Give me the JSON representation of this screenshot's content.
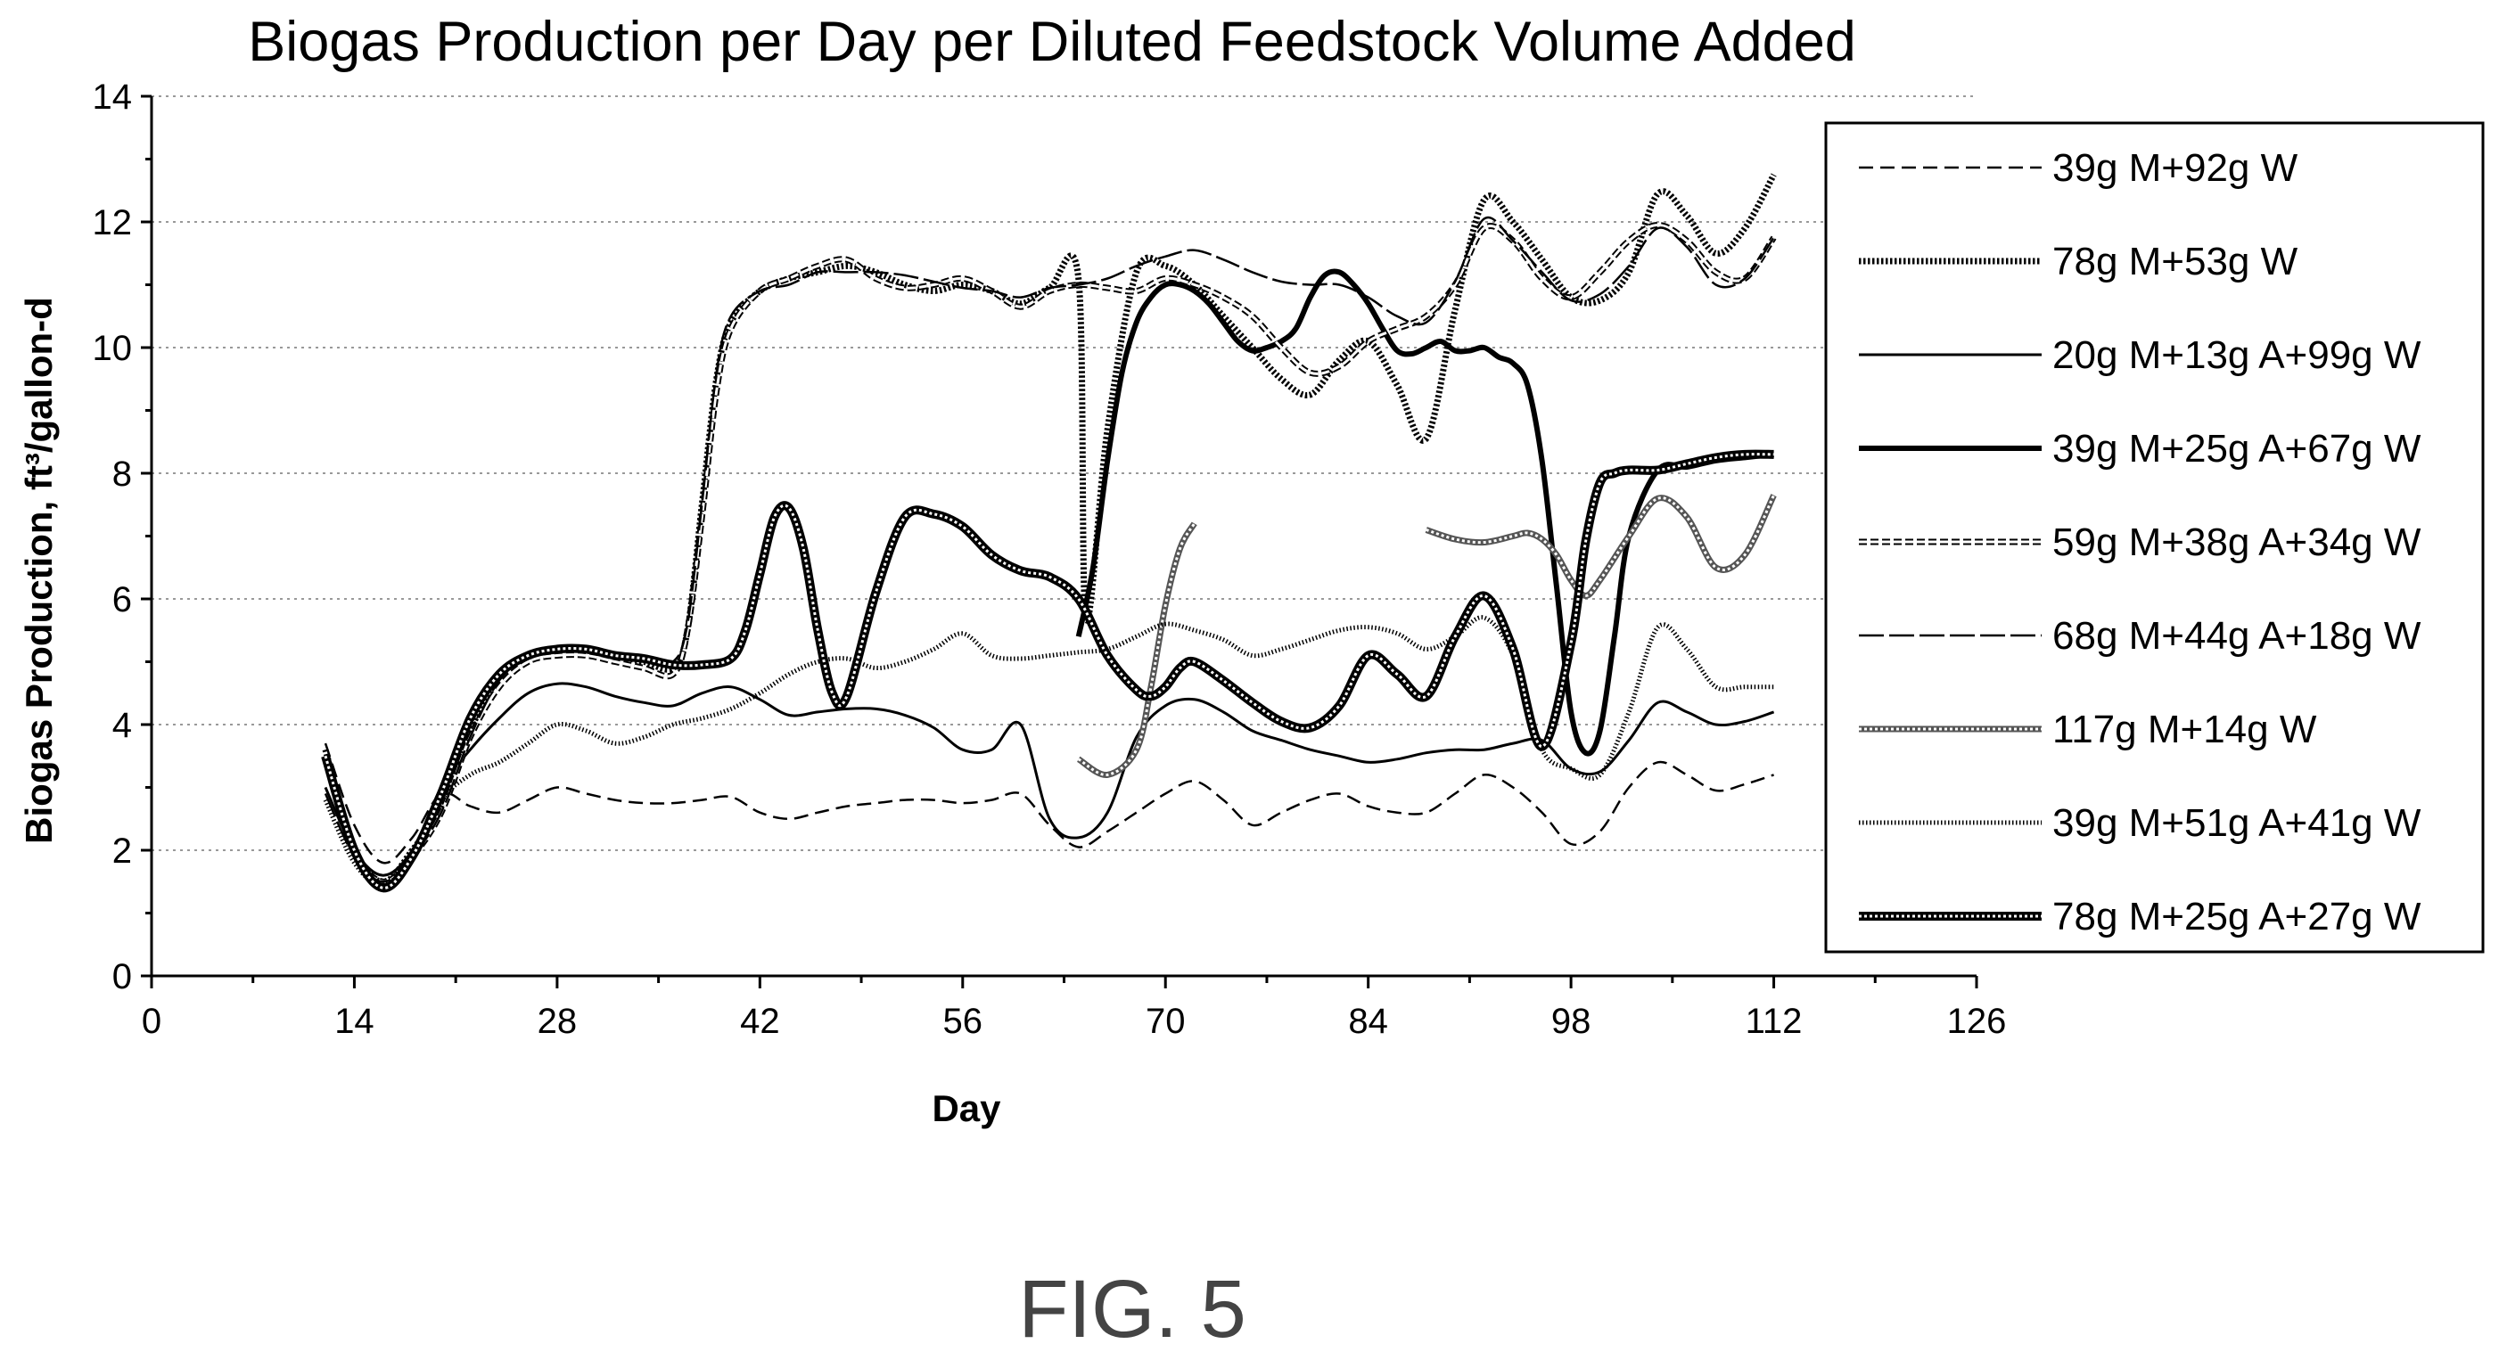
{
  "figure_label": "FIG. 5",
  "chart_data": {
    "type": "line",
    "title": "Biogas Production per Day per Diluted Feedstock Volume Added",
    "xlabel": "Day",
    "ylabel": "Biogas Production, ft³/gallon-d",
    "xlim": [
      0,
      126
    ],
    "ylim": [
      0,
      14
    ],
    "xticks": [
      0,
      14,
      28,
      42,
      56,
      70,
      84,
      98,
      112,
      126
    ],
    "yticks": [
      0,
      2,
      4,
      6,
      8,
      10,
      12,
      14
    ],
    "grid": "horizontal dotted",
    "legend_position": "right",
    "series": [
      {
        "name": "39g M+92g W",
        "style": "dashed",
        "x": [
          12,
          14,
          16,
          18,
          20,
          22,
          24,
          26,
          28,
          30,
          32,
          34,
          36,
          38,
          40,
          42,
          44,
          46,
          48,
          50,
          52,
          54,
          56,
          58,
          60,
          62,
          64,
          66,
          68,
          70,
          72,
          74,
          76,
          78,
          80,
          82,
          84,
          86,
          88,
          90,
          92,
          94,
          96,
          98,
          100,
          102,
          104,
          106,
          108,
          110,
          112
        ],
        "y": [
          3.7,
          2.4,
          1.8,
          2.2,
          2.9,
          2.7,
          2.6,
          2.8,
          3.0,
          2.9,
          2.8,
          2.75,
          2.75,
          2.8,
          2.85,
          2.6,
          2.5,
          2.6,
          2.7,
          2.75,
          2.8,
          2.8,
          2.75,
          2.8,
          2.9,
          2.4,
          2.05,
          2.3,
          2.6,
          2.9,
          3.1,
          2.8,
          2.4,
          2.6,
          2.8,
          2.9,
          2.7,
          2.6,
          2.6,
          2.9,
          3.2,
          3.0,
          2.6,
          2.1,
          2.3,
          3.0,
          3.4,
          3.2,
          2.95,
          3.05,
          3.2
        ]
      },
      {
        "name": "78g M+53g W",
        "style": "dotted-thick",
        "x": [
          12,
          14,
          16,
          18,
          20,
          22,
          24,
          26,
          28,
          30,
          32,
          34,
          36,
          37,
          38,
          39,
          40,
          42,
          44,
          46,
          48,
          50,
          52,
          54,
          56,
          58,
          60,
          62,
          64,
          64.5,
          66,
          68,
          70,
          72,
          74,
          76,
          78,
          80,
          82,
          84,
          86,
          88,
          90,
          92,
          94,
          96,
          98,
          100,
          102,
          104,
          106,
          108,
          110,
          112
        ],
        "y": [
          3.6,
          2.0,
          1.5,
          2.0,
          2.7,
          3.9,
          4.8,
          5.1,
          5.2,
          5.2,
          5.1,
          5.0,
          4.9,
          5.5,
          7.5,
          9.5,
          10.4,
          10.9,
          11.1,
          11.2,
          11.3,
          11.2,
          11.0,
          10.9,
          11.0,
          10.9,
          10.7,
          10.95,
          11.1,
          5.7,
          8.7,
          11.2,
          11.3,
          11.0,
          10.5,
          10.0,
          9.5,
          9.25,
          9.8,
          10.1,
          9.4,
          8.55,
          10.6,
          12.35,
          12.0,
          11.4,
          10.8,
          10.75,
          11.2,
          12.45,
          12.1,
          11.5,
          11.9,
          12.75
        ]
      },
      {
        "name": "20g M+13g A+99g W",
        "style": "solid-thin",
        "x": [
          12,
          14,
          16,
          18,
          20,
          22,
          24,
          26,
          28,
          30,
          32,
          34,
          36,
          38,
          40,
          42,
          44,
          46,
          48,
          50,
          52,
          54,
          56,
          58,
          60,
          62,
          64,
          66,
          68,
          70,
          72,
          74,
          76,
          78,
          80,
          82,
          84,
          86,
          88,
          90,
          92,
          94,
          96,
          98,
          100,
          102,
          104,
          106,
          108,
          110,
          112
        ],
        "y": [
          3.0,
          2.0,
          1.6,
          2.0,
          3.0,
          3.6,
          4.1,
          4.5,
          4.65,
          4.6,
          4.45,
          4.35,
          4.3,
          4.5,
          4.6,
          4.4,
          4.15,
          4.2,
          4.25,
          4.25,
          4.15,
          3.95,
          3.6,
          3.6,
          4.0,
          2.5,
          2.2,
          2.6,
          3.8,
          4.3,
          4.4,
          4.2,
          3.9,
          3.75,
          3.6,
          3.5,
          3.4,
          3.45,
          3.55,
          3.6,
          3.6,
          3.7,
          3.75,
          3.3,
          3.25,
          3.75,
          4.35,
          4.2,
          4.0,
          4.05,
          4.2
        ]
      },
      {
        "name": "39g M+25g A+67g W",
        "style": "solid-thick",
        "x": [
          64,
          65,
          66,
          67,
          68,
          69,
          70,
          71,
          72,
          73,
          74,
          75,
          76,
          77,
          78,
          79,
          80,
          81,
          82,
          83,
          84,
          85,
          86,
          87,
          88,
          89,
          90,
          91,
          92,
          93,
          94,
          95,
          96,
          97,
          98,
          99,
          100,
          101,
          102,
          104,
          106,
          108,
          110,
          112
        ],
        "y": [
          5.4,
          6.5,
          8.2,
          9.6,
          10.4,
          10.8,
          11.0,
          11.0,
          10.9,
          10.7,
          10.4,
          10.1,
          9.95,
          10.0,
          10.1,
          10.3,
          10.8,
          11.15,
          11.2,
          11.0,
          10.7,
          10.3,
          9.95,
          9.9,
          10.0,
          10.1,
          9.95,
          9.95,
          10.0,
          9.85,
          9.75,
          9.4,
          8.2,
          6.2,
          4.2,
          3.55,
          3.9,
          5.4,
          7.0,
          8.05,
          8.1,
          8.2,
          8.25,
          8.3
        ]
      },
      {
        "name": "59g M+38g A+34g W",
        "style": "dashed-double",
        "x": [
          12,
          14,
          16,
          18,
          20,
          22,
          24,
          26,
          28,
          30,
          32,
          34,
          36,
          37,
          38,
          39,
          40,
          42,
          44,
          46,
          48,
          50,
          52,
          54,
          56,
          58,
          60,
          62,
          64,
          66,
          68,
          70,
          72,
          74,
          76,
          78,
          80,
          82,
          84,
          86,
          88,
          90,
          92,
          94,
          96,
          98,
          100,
          102,
          104,
          106,
          108,
          110,
          112
        ],
        "y": [
          3.5,
          2.0,
          1.5,
          1.9,
          2.6,
          3.8,
          4.6,
          5.0,
          5.1,
          5.1,
          5.0,
          4.9,
          4.8,
          5.5,
          7.3,
          9.3,
          10.3,
          10.9,
          11.1,
          11.3,
          11.4,
          11.1,
          10.95,
          11.0,
          11.1,
          10.9,
          10.65,
          10.9,
          11.0,
          10.95,
          10.9,
          11.1,
          11.0,
          10.8,
          10.5,
          10.0,
          9.6,
          9.7,
          10.1,
          10.3,
          10.5,
          11.0,
          11.9,
          11.7,
          11.1,
          10.8,
          11.2,
          11.7,
          11.95,
          11.7,
          11.2,
          11.1,
          11.75
        ]
      },
      {
        "name": "68g M+44g A+18g W",
        "style": "long-dash-thin",
        "x": [
          12,
          14,
          16,
          18,
          20,
          22,
          24,
          26,
          28,
          30,
          32,
          34,
          36,
          37,
          38,
          39,
          40,
          42,
          44,
          46,
          48,
          50,
          52,
          54,
          56,
          58,
          60,
          62,
          64,
          66,
          68,
          70,
          72,
          74,
          76,
          78,
          80,
          82,
          84,
          86,
          88,
          90,
          92,
          94,
          96,
          98,
          100,
          102,
          104,
          106,
          108,
          110,
          112
        ],
        "y": [
          2.9,
          1.9,
          1.5,
          1.9,
          2.6,
          3.8,
          4.7,
          5.05,
          5.2,
          5.2,
          5.1,
          5.0,
          5.0,
          5.6,
          7.5,
          9.6,
          10.5,
          10.9,
          11.0,
          11.2,
          11.2,
          11.2,
          11.15,
          11.05,
          10.95,
          10.9,
          10.8,
          10.95,
          11.0,
          11.1,
          11.3,
          11.45,
          11.55,
          11.4,
          11.2,
          11.05,
          11.0,
          11.0,
          10.8,
          10.5,
          10.4,
          11.05,
          12.05,
          11.7,
          11.2,
          10.75,
          10.85,
          11.3,
          11.9,
          11.6,
          11.0,
          11.1,
          11.75
        ]
      },
      {
        "name": "117g M+14g W",
        "style": "checker-thin",
        "x": [
          64,
          66,
          68,
          69,
          70,
          71,
          72
        ],
        "y": [
          3.45,
          3.2,
          3.6,
          4.6,
          5.9,
          6.8,
          7.2
        ],
        "x2": [
          88,
          90,
          92,
          94,
          95,
          96,
          97,
          98,
          99,
          100,
          102,
          104,
          106,
          108,
          110,
          112
        ],
        "y2": [
          7.1,
          6.95,
          6.9,
          7.0,
          7.05,
          6.95,
          6.7,
          6.3,
          6.05,
          6.3,
          7.0,
          7.6,
          7.3,
          6.5,
          6.7,
          7.65
        ]
      },
      {
        "name": "39g M+51g A+41g W",
        "style": "wavy",
        "x": [
          12,
          14,
          16,
          18,
          20,
          22,
          24,
          26,
          28,
          30,
          32,
          34,
          36,
          38,
          40,
          42,
          44,
          46,
          48,
          50,
          52,
          54,
          56,
          58,
          60,
          62,
          64,
          66,
          68,
          70,
          72,
          74,
          76,
          78,
          80,
          82,
          84,
          86,
          88,
          90,
          92,
          94,
          96,
          98,
          100,
          102,
          104,
          106,
          108,
          110,
          112
        ],
        "y": [
          2.8,
          1.8,
          1.45,
          1.9,
          2.8,
          3.2,
          3.4,
          3.7,
          4.0,
          3.9,
          3.7,
          3.8,
          4.0,
          4.1,
          4.25,
          4.5,
          4.8,
          5.0,
          5.05,
          4.9,
          5.0,
          5.2,
          5.45,
          5.1,
          5.05,
          5.1,
          5.15,
          5.2,
          5.4,
          5.6,
          5.5,
          5.35,
          5.1,
          5.2,
          5.35,
          5.5,
          5.55,
          5.45,
          5.2,
          5.4,
          5.7,
          5.1,
          3.6,
          3.3,
          3.2,
          4.2,
          5.55,
          5.2,
          4.6,
          4.6,
          4.6
        ]
      },
      {
        "name": "78g M+25g A+27g W",
        "style": "solid-heavy",
        "x": [
          12,
          14,
          16,
          18,
          20,
          22,
          24,
          26,
          28,
          30,
          32,
          34,
          36,
          38,
          40,
          41,
          42,
          43,
          44,
          45,
          46,
          47,
          48,
          50,
          52,
          54,
          56,
          58,
          60,
          62,
          64,
          66,
          68,
          69,
          70,
          71,
          72,
          74,
          76,
          78,
          80,
          82,
          84,
          86,
          88,
          90,
          92,
          94,
          96,
          98,
          99,
          100,
          101,
          102,
          104,
          106,
          108,
          110,
          112
        ],
        "y": [
          3.5,
          2.0,
          1.4,
          1.9,
          2.9,
          4.1,
          4.8,
          5.1,
          5.2,
          5.2,
          5.1,
          5.05,
          4.95,
          4.95,
          5.05,
          5.5,
          6.4,
          7.3,
          7.45,
          6.8,
          5.5,
          4.5,
          4.45,
          6.1,
          7.3,
          7.35,
          7.15,
          6.7,
          6.45,
          6.35,
          6.0,
          5.1,
          4.55,
          4.45,
          4.6,
          4.9,
          5.0,
          4.7,
          4.35,
          4.05,
          3.95,
          4.3,
          5.1,
          4.8,
          4.45,
          5.4,
          6.05,
          5.2,
          3.65,
          5.3,
          6.9,
          7.85,
          8.0,
          8.05,
          8.05,
          8.15,
          8.25,
          8.3,
          8.3
        ]
      }
    ]
  }
}
